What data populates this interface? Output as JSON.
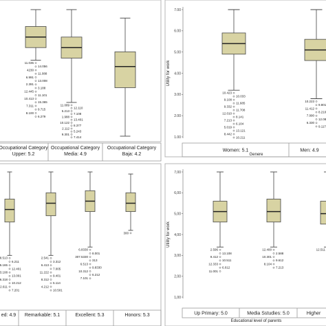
{
  "colors": {
    "box_fill": "#d8d3a3",
    "box_stroke": "#444444",
    "median": "#222222",
    "panel_frame": "#b4b4b4",
    "cat_frame": "#999999",
    "background": "#ffffff"
  },
  "chart_data": [
    {
      "type": "box",
      "panel": "top-left",
      "ylabel": "",
      "xlabel": "",
      "ylim": [
        1,
        7
      ],
      "yticks": [],
      "categories": [
        "Occupational Category Upper: 5.2",
        "Occupational Category Media: 4.9",
        "Occupational Category Baja: 4.2"
      ],
      "boxes": [
        {
          "whisker_low": 4.6,
          "q1": 5.2,
          "median": 5.7,
          "q3": 6.2,
          "whisker_high": 7.0
        },
        {
          "whisker_low": 2.6,
          "q1": 4.7,
          "median": 5.2,
          "q3": 5.7,
          "whisker_high": 7.0
        },
        {
          "whisker_low": 1.0,
          "q1": 3.3,
          "median": 4.3,
          "q3": 5.0,
          "whisker_high": 6.6
        }
      ],
      "outlier_labels": [
        [
          "11.035",
          "14.056",
          "4230",
          "11.088",
          "6.991",
          "13.008",
          "2.391",
          "3.188",
          "12.445",
          "11.101",
          "10.413",
          "15.365",
          "7.311",
          "9.715",
          "8.100",
          "6.279"
        ],
        [
          "11.089",
          "12.110",
          "5.213",
          "7.108",
          "1.988",
          "13.401",
          "10.122",
          "8.377",
          "2.112",
          "5.243",
          "9.301",
          "7.414"
        ],
        []
      ]
    },
    {
      "type": "box",
      "panel": "top-right",
      "ylabel": "Utility for work",
      "xlabel": "Genere",
      "ylim": [
        1,
        7
      ],
      "yticks": [
        "1.00",
        "2.00",
        "3.00",
        "4.00",
        "5.00",
        "6.00",
        "7.00"
      ],
      "categories": [
        "Women: 5.1",
        "Men: 4.9"
      ],
      "boxes": [
        {
          "whisker_low": 3.2,
          "q1": 4.9,
          "median": 5.4,
          "q3": 5.9,
          "whisker_high": 7.0
        },
        {
          "whisker_low": 2.8,
          "q1": 4.6,
          "median": 5.1,
          "q3": 5.6,
          "whisker_high": 7.0
        }
      ],
      "outlier_labels": [
        [
          "10.423",
          "10.033",
          "9.108",
          "11.685",
          "9.332",
          "11.708",
          "12.010",
          "8.141",
          "7.213",
          "6.104",
          "5.019",
          "13.121",
          "8.442",
          "10.211"
        ],
        [
          "10.223",
          "9.801",
          "11.412",
          "8.210",
          "7.990",
          "12.081",
          "6.330",
          "9.117"
        ]
      ]
    },
    {
      "type": "box",
      "panel": "bottom-left",
      "ylabel": "",
      "xlabel": "",
      "ylim": [
        1,
        7
      ],
      "yticks": [],
      "categories": [
        "ed: 4.9",
        "Remarkable: 5.1",
        "Excellent: 5.3",
        "Honors: 5.3"
      ],
      "boxes": [
        {
          "whisker_low": 3.0,
          "q1": 4.6,
          "median": 5.2,
          "q3": 5.7,
          "whisker_high": 7.0
        },
        {
          "whisker_low": 3.0,
          "q1": 4.9,
          "median": 5.5,
          "q3": 6.0,
          "whisker_high": 7.0
        },
        {
          "whisker_low": 3.4,
          "q1": 5.1,
          "median": 5.6,
          "q3": 6.1,
          "whisker_high": 7.0
        },
        {
          "whisker_low": 4.2,
          "q1": 5.1,
          "median": 5.5,
          "q3": 6.0,
          "whisker_high": 6.9
        }
      ],
      "outlier_labels": [
        [
          "8.513",
          "6.211",
          "5.165",
          "12.401",
          "3.108",
          "13.001",
          "6.318",
          "10.212",
          "2.611",
          "7.201"
        ],
        [
          "2.541",
          "3.312",
          "6.413",
          "7.005",
          "11.222",
          "9.401",
          "8.312",
          "5.114",
          "4.212",
          "10.501"
        ],
        [
          "6.8330",
          "8.001",
          "307.5330",
          "313",
          "6.513",
          "9.8330",
          "10.312",
          "6.212",
          "7.101"
        ],
        [
          "300"
        ]
      ]
    },
    {
      "type": "box",
      "panel": "bottom-right",
      "ylabel": "Utility for work",
      "xlabel": "Educational level of parents",
      "ylim": [
        1,
        7
      ],
      "yticks": [
        "1,00",
        "2,00",
        "3,00",
        "4,00",
        "5,00",
        "6,00",
        "7,00"
      ],
      "categories": [
        "Up Primary: 5.0",
        "Media Sstudies: 5.0",
        "Higher"
      ],
      "boxes": [
        {
          "whisker_low": 3.4,
          "q1": 4.6,
          "median": 5.1,
          "q3": 5.6,
          "whisker_high": 7.0
        },
        {
          "whisker_low": 3.4,
          "q1": 4.6,
          "median": 5.1,
          "q3": 5.7,
          "whisker_high": 7.0
        },
        {
          "whisker_low": 3.4,
          "q1": 4.5,
          "median": 5.0,
          "q3": 5.6,
          "whisker_high": 7.0
        }
      ],
      "outlier_labels": [
        [
          "2.596",
          "13.108",
          "9.412",
          "10.511",
          "12.333",
          "6.012",
          "11.001"
        ],
        [
          "12.400",
          "2.588",
          "10.301",
          "9.612",
          "8.104",
          "7.213"
        ],
        [
          "12.511",
          "11.001"
        ]
      ]
    }
  ]
}
